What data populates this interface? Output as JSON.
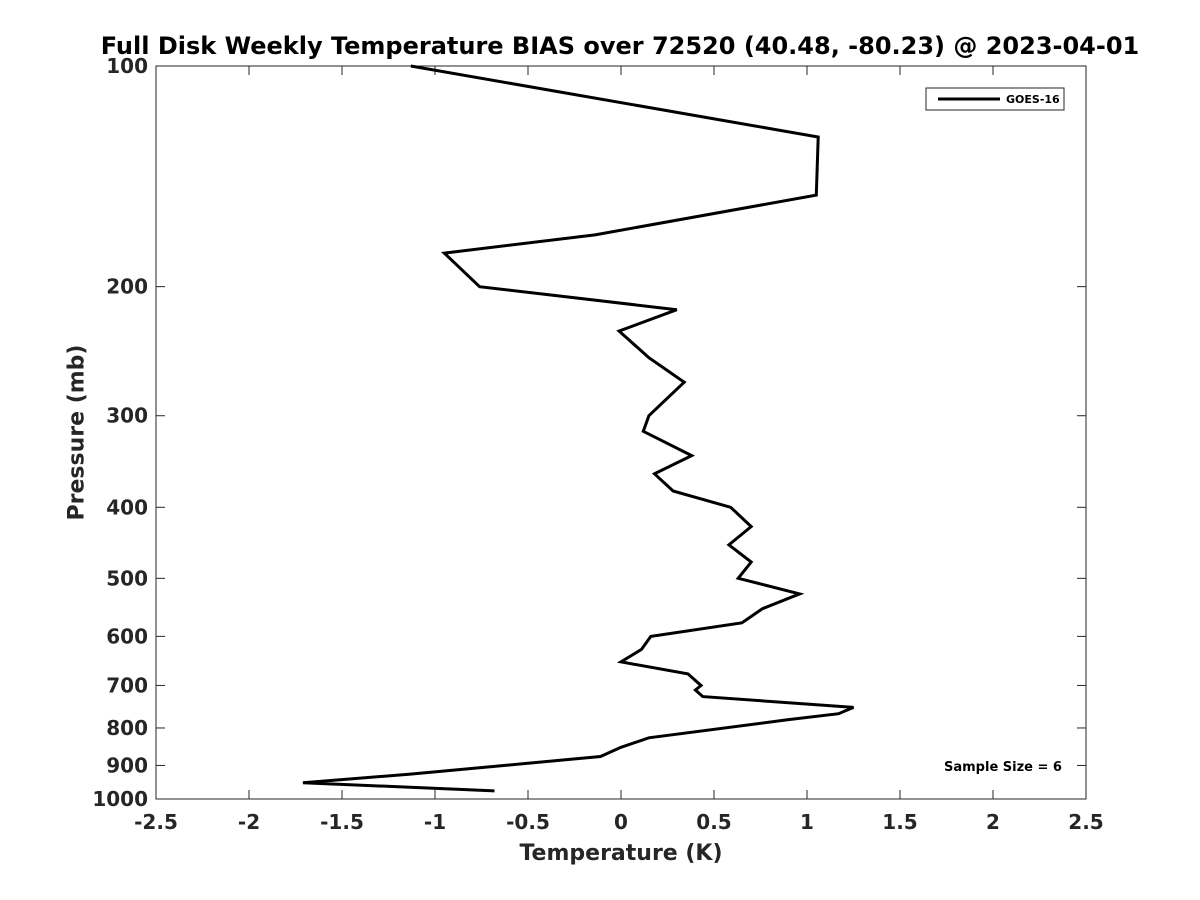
{
  "chart_data": {
    "type": "line",
    "title": "Full Disk Weekly Temperature BIAS over 72520 (40.48, -80.23) @ 2023-04-01",
    "xlabel": "Temperature (K)",
    "ylabel": "Pressure (mb)",
    "xlim": [
      -2.5,
      2.5
    ],
    "ylim": [
      100,
      1000
    ],
    "y_scale": "log",
    "y_reversed": true,
    "x_ticks": [
      "-2.5",
      "-2",
      "-1.5",
      "-1",
      "-0.5",
      "0",
      "0.5",
      "1",
      "1.5",
      "2",
      "2.5"
    ],
    "x_tick_values": [
      -2.5,
      -2,
      -1.5,
      -1,
      -0.5,
      0,
      0.5,
      1,
      1.5,
      2,
      2.5
    ],
    "y_ticks": [
      "100",
      "200",
      "300",
      "400",
      "500",
      "600",
      "700",
      "800",
      "900",
      "1000"
    ],
    "y_tick_values": [
      100,
      200,
      300,
      400,
      500,
      600,
      700,
      800,
      900,
      1000
    ],
    "grid": false,
    "legend_position": "top-right",
    "series": [
      {
        "name": "GOES-16",
        "color": "#000000",
        "points": [
          {
            "t": -1.13,
            "p": 100
          },
          {
            "t": 1.06,
            "p": 125
          },
          {
            "t": 1.05,
            "p": 150
          },
          {
            "t": -0.14,
            "p": 170
          },
          {
            "t": -0.95,
            "p": 180
          },
          {
            "t": -0.76,
            "p": 200
          },
          {
            "t": 0.3,
            "p": 215
          },
          {
            "t": -0.01,
            "p": 230
          },
          {
            "t": 0.15,
            "p": 250
          },
          {
            "t": 0.34,
            "p": 270
          },
          {
            "t": 0.15,
            "p": 300
          },
          {
            "t": 0.12,
            "p": 315
          },
          {
            "t": 0.38,
            "p": 340
          },
          {
            "t": 0.18,
            "p": 360
          },
          {
            "t": 0.28,
            "p": 380
          },
          {
            "t": 0.59,
            "p": 400
          },
          {
            "t": 0.7,
            "p": 425
          },
          {
            "t": 0.58,
            "p": 450
          },
          {
            "t": 0.7,
            "p": 475
          },
          {
            "t": 0.63,
            "p": 500
          },
          {
            "t": 0.96,
            "p": 525
          },
          {
            "t": 0.76,
            "p": 550
          },
          {
            "t": 0.65,
            "p": 575
          },
          {
            "t": 0.16,
            "p": 600
          },
          {
            "t": 0.11,
            "p": 625
          },
          {
            "t": 0.0,
            "p": 650
          },
          {
            "t": 0.36,
            "p": 675
          },
          {
            "t": 0.43,
            "p": 700
          },
          {
            "t": 0.4,
            "p": 710
          },
          {
            "t": 0.44,
            "p": 725
          },
          {
            "t": 1.25,
            "p": 750
          },
          {
            "t": 1.17,
            "p": 765
          },
          {
            "t": 0.89,
            "p": 780
          },
          {
            "t": 0.15,
            "p": 825
          },
          {
            "t": 0.0,
            "p": 850
          },
          {
            "t": -0.11,
            "p": 875
          },
          {
            "t": -0.63,
            "p": 900
          },
          {
            "t": -1.14,
            "p": 925
          },
          {
            "t": -1.71,
            "p": 950
          },
          {
            "t": -0.68,
            "p": 975
          }
        ]
      }
    ],
    "annotation": "Sample Size = 6"
  }
}
